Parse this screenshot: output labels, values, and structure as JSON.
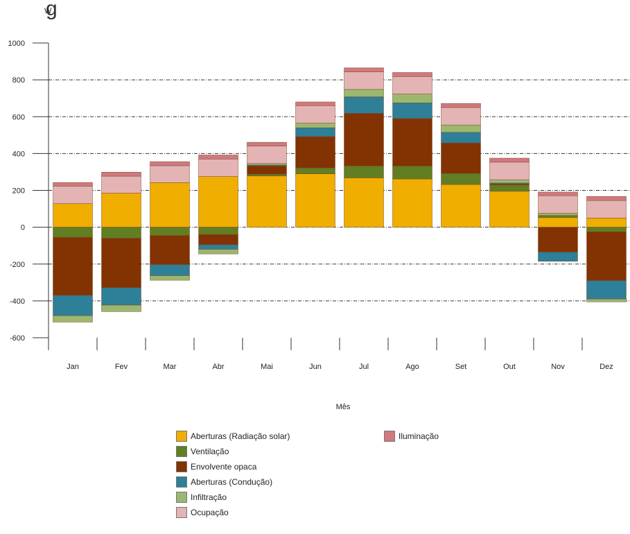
{
  "header": {
    "title_fragment": "g",
    "unit_label": "W"
  },
  "chart_data": {
    "type": "bar",
    "stacked": true,
    "title": "",
    "ylabel": "W",
    "xlabel": "Mês",
    "ylim": [
      -600,
      1000
    ],
    "yticks": [
      "1000",
      "800",
      "600",
      "400",
      "200",
      "0",
      "-200",
      "-400",
      "-600"
    ],
    "grid": "horizontal dashed",
    "legend_position": "bottom",
    "categories": [
      "Jan",
      "Fev",
      "Mar",
      "Abr",
      "Mai",
      "Jun",
      "Jul",
      "Ago",
      "Set",
      "Out",
      "Nov",
      "Dez"
    ],
    "series": [
      {
        "name": "Aberturas (Radiação solar)",
        "color": "#F0AE00",
        "values": [
          128,
          185,
          242,
          275,
          278,
          290,
          268,
          262,
          232,
          195,
          52,
          50
        ]
      },
      {
        "name": "Ventilação",
        "color": "#627E22",
        "values": [
          -55,
          -60,
          -45,
          -40,
          10,
          32,
          65,
          70,
          60,
          35,
          12,
          -25
        ]
      },
      {
        "name": "Envolvente opaca",
        "color": "#833201",
        "values": [
          -315,
          -268,
          -158,
          -55,
          45,
          170,
          285,
          258,
          165,
          5,
          -135,
          -265
        ]
      },
      {
        "name": "Aberturas (Condução)",
        "color": "#2E7F98",
        "values": [
          -110,
          -95,
          -60,
          -25,
          5,
          48,
          90,
          85,
          58,
          5,
          -50,
          -100
        ]
      },
      {
        "name": "Infiltração",
        "color": "#9BB86E",
        "values": [
          -35,
          -35,
          -25,
          -25,
          8,
          25,
          40,
          48,
          40,
          18,
          12,
          -15
        ]
      },
      {
        "name": "Ocupação",
        "color": "#E4B4B5",
        "values": [
          95,
          92,
          92,
          95,
          95,
          95,
          95,
          95,
          95,
          95,
          95,
          95
        ]
      },
      {
        "name": "Iluminação",
        "color": "#D0797E",
        "values": [
          20,
          22,
          22,
          22,
          20,
          20,
          22,
          22,
          22,
          22,
          20,
          22
        ]
      }
    ]
  }
}
